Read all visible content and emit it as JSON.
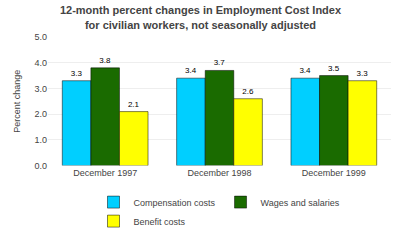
{
  "chart_data": {
    "type": "bar",
    "title": "12-month percent changes in Employment Cost Index",
    "subtitle": "for civilian workers, not seasonally adjusted",
    "categories": [
      "December 1997",
      "December 1998",
      "December 1999"
    ],
    "series": [
      {
        "name": "Compensation costs",
        "color": "#00CFFF",
        "values": [
          3.3,
          3.4,
          3.4
        ]
      },
      {
        "name": "Wages and salaries",
        "color": "#1A6B00",
        "values": [
          3.8,
          3.7,
          3.5
        ]
      },
      {
        "name": "Benefit costs",
        "color": "#FFFF00",
        "values": [
          2.1,
          2.6,
          3.3
        ]
      }
    ],
    "ylabel": "Percent change",
    "ylim": [
      0.0,
      5.0
    ],
    "yticks": [
      {
        "value": 0,
        "label": "0.0"
      },
      {
        "value": 1,
        "label": "1.0"
      },
      {
        "value": 2,
        "label": "2.0"
      },
      {
        "value": 3,
        "label": "3.0"
      },
      {
        "value": 4,
        "label": "4.0"
      },
      {
        "value": 5,
        "label": "5.0"
      }
    ],
    "grid": true,
    "data_labels": true,
    "legend": "bottom"
  }
}
